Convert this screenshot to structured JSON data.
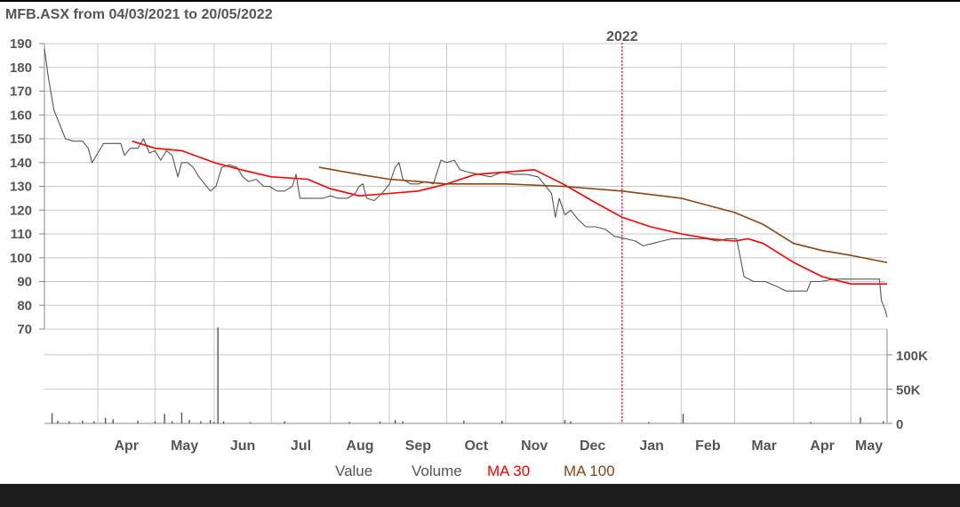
{
  "colors": {
    "value": "#555555",
    "volume": "#555555",
    "ma30": "#ff0000",
    "ma100": "#8b4513",
    "grid": "#c8c8c8",
    "year_marker": "#ff0000"
  },
  "chart_data": {
    "type": "line",
    "title": "MFB.ASX from 04/03/2021 to 20/05/2022",
    "x_range": [
      "2021-03-04",
      "2022-05-20"
    ],
    "ylim": [
      70,
      190
    ],
    "yticks": [
      70,
      80,
      90,
      100,
      110,
      120,
      130,
      140,
      150,
      160,
      170,
      180,
      190
    ],
    "volume_ticks": [
      {
        "value": 0,
        "label": "0"
      },
      {
        "value": 50000,
        "label": "50K"
      },
      {
        "value": 100000,
        "label": "100K"
      }
    ],
    "volume_max": 140000,
    "months": [
      {
        "label": "Apr",
        "date": "2021-04-01"
      },
      {
        "label": "May",
        "date": "2021-05-01"
      },
      {
        "label": "Jun",
        "date": "2021-06-01"
      },
      {
        "label": "Jul",
        "date": "2021-07-01"
      },
      {
        "label": "Aug",
        "date": "2021-08-01"
      },
      {
        "label": "Sep",
        "date": "2021-09-01"
      },
      {
        "label": "Oct",
        "date": "2021-10-01"
      },
      {
        "label": "Nov",
        "date": "2021-11-01"
      },
      {
        "label": "Dec",
        "date": "2021-12-01"
      },
      {
        "label": "Jan",
        "date": "2022-01-01"
      },
      {
        "label": "Feb",
        "date": "2022-02-01"
      },
      {
        "label": "Mar",
        "date": "2022-03-01"
      },
      {
        "label": "Apr",
        "date": "2022-04-01"
      },
      {
        "label": "May",
        "date": "2022-05-01"
      }
    ],
    "year_marker": {
      "label": "2022",
      "date": "2022-01-01"
    },
    "legend": [
      "Value",
      "Volume",
      "MA 30",
      "MA 100"
    ],
    "series": [
      {
        "name": "Value",
        "points": [
          [
            "2021-03-04",
            188
          ],
          [
            "2021-03-06",
            176
          ],
          [
            "2021-03-09",
            162
          ],
          [
            "2021-03-12",
            156
          ],
          [
            "2021-03-15",
            150
          ],
          [
            "2021-03-19",
            149
          ],
          [
            "2021-03-24",
            149
          ],
          [
            "2021-03-27",
            146
          ],
          [
            "2021-03-29",
            140
          ],
          [
            "2021-04-01",
            144
          ],
          [
            "2021-04-04",
            148
          ],
          [
            "2021-04-09",
            148
          ],
          [
            "2021-04-13",
            148
          ],
          [
            "2021-04-15",
            143
          ],
          [
            "2021-04-18",
            146
          ],
          [
            "2021-04-22",
            146
          ],
          [
            "2021-04-25",
            150
          ],
          [
            "2021-04-28",
            144
          ],
          [
            "2021-05-01",
            145
          ],
          [
            "2021-05-04",
            141
          ],
          [
            "2021-05-07",
            145
          ],
          [
            "2021-05-10",
            143
          ],
          [
            "2021-05-13",
            134
          ],
          [
            "2021-05-15",
            140
          ],
          [
            "2021-05-18",
            140
          ],
          [
            "2021-05-21",
            138
          ],
          [
            "2021-05-24",
            134
          ],
          [
            "2021-05-27",
            131
          ],
          [
            "2021-05-30",
            128
          ],
          [
            "2021-06-02",
            130
          ],
          [
            "2021-06-05",
            138
          ],
          [
            "2021-06-09",
            139
          ],
          [
            "2021-06-13",
            138
          ],
          [
            "2021-06-16",
            134
          ],
          [
            "2021-06-19",
            132
          ],
          [
            "2021-06-23",
            133
          ],
          [
            "2021-06-27",
            130
          ],
          [
            "2021-06-30",
            130
          ],
          [
            "2021-07-04",
            128
          ],
          [
            "2021-07-08",
            128
          ],
          [
            "2021-07-12",
            130
          ],
          [
            "2021-07-14",
            135
          ],
          [
            "2021-07-16",
            125
          ],
          [
            "2021-07-22",
            125
          ],
          [
            "2021-07-28",
            125
          ],
          [
            "2021-08-01",
            126
          ],
          [
            "2021-08-05",
            125
          ],
          [
            "2021-08-10",
            125
          ],
          [
            "2021-08-14",
            127
          ],
          [
            "2021-08-16",
            130
          ],
          [
            "2021-08-18",
            131
          ],
          [
            "2021-08-20",
            125
          ],
          [
            "2021-08-24",
            124
          ],
          [
            "2021-08-28",
            127
          ],
          [
            "2021-09-01",
            131
          ],
          [
            "2021-09-04",
            138
          ],
          [
            "2021-09-06",
            140
          ],
          [
            "2021-09-08",
            133
          ],
          [
            "2021-09-12",
            131
          ],
          [
            "2021-09-16",
            131
          ],
          [
            "2021-09-20",
            132
          ],
          [
            "2021-09-24",
            131
          ],
          [
            "2021-09-28",
            141
          ],
          [
            "2021-10-01",
            140
          ],
          [
            "2021-10-05",
            141
          ],
          [
            "2021-10-08",
            137
          ],
          [
            "2021-10-12",
            136
          ],
          [
            "2021-10-18",
            135
          ],
          [
            "2021-10-24",
            134
          ],
          [
            "2021-10-30",
            136
          ],
          [
            "2021-11-05",
            135
          ],
          [
            "2021-11-12",
            135
          ],
          [
            "2021-11-18",
            134
          ],
          [
            "2021-11-22",
            130
          ],
          [
            "2021-11-25",
            127
          ],
          [
            "2021-11-27",
            117
          ],
          [
            "2021-11-29",
            125
          ],
          [
            "2021-12-02",
            118
          ],
          [
            "2021-12-05",
            120
          ],
          [
            "2021-12-09",
            116
          ],
          [
            "2021-12-13",
            113
          ],
          [
            "2021-12-18",
            113
          ],
          [
            "2021-12-23",
            112
          ],
          [
            "2021-12-28",
            109
          ],
          [
            "2022-01-03",
            108
          ],
          [
            "2022-01-08",
            107
          ],
          [
            "2022-01-12",
            105
          ],
          [
            "2022-01-17",
            106
          ],
          [
            "2022-01-22",
            107
          ],
          [
            "2022-01-27",
            108
          ],
          [
            "2022-02-02",
            108
          ],
          [
            "2022-02-09",
            108
          ],
          [
            "2022-02-14",
            108
          ],
          [
            "2022-02-20",
            107
          ],
          [
            "2022-02-25",
            108
          ],
          [
            "2022-03-02",
            108
          ],
          [
            "2022-03-04",
            100
          ],
          [
            "2022-03-06",
            92
          ],
          [
            "2022-03-11",
            90
          ],
          [
            "2022-03-17",
            90
          ],
          [
            "2022-03-23",
            88
          ],
          [
            "2022-03-28",
            86
          ],
          [
            "2022-04-03",
            86
          ],
          [
            "2022-04-08",
            86
          ],
          [
            "2022-04-10",
            90
          ],
          [
            "2022-04-15",
            90
          ],
          [
            "2022-04-22",
            91
          ],
          [
            "2022-04-29",
            91
          ],
          [
            "2022-05-06",
            91
          ],
          [
            "2022-05-13",
            91
          ],
          [
            "2022-05-16",
            91
          ],
          [
            "2022-05-17",
            82
          ],
          [
            "2022-05-19",
            78
          ],
          [
            "2022-05-20",
            75
          ]
        ]
      },
      {
        "name": "MA 30",
        "points": [
          [
            "2021-04-19",
            149
          ],
          [
            "2021-05-01",
            146
          ],
          [
            "2021-05-15",
            145
          ],
          [
            "2021-06-01",
            140
          ],
          [
            "2021-06-15",
            137
          ],
          [
            "2021-07-01",
            134
          ],
          [
            "2021-07-20",
            133
          ],
          [
            "2021-08-01",
            129
          ],
          [
            "2021-08-16",
            126
          ],
          [
            "2021-09-01",
            127
          ],
          [
            "2021-09-16",
            128
          ],
          [
            "2021-10-01",
            131
          ],
          [
            "2021-10-16",
            135
          ],
          [
            "2021-11-01",
            136
          ],
          [
            "2021-11-16",
            137
          ],
          [
            "2021-12-01",
            131
          ],
          [
            "2021-12-16",
            124
          ],
          [
            "2022-01-01",
            117
          ],
          [
            "2022-01-16",
            113
          ],
          [
            "2022-02-01",
            110
          ],
          [
            "2022-02-16",
            108
          ],
          [
            "2022-03-01",
            107
          ],
          [
            "2022-03-08",
            108
          ],
          [
            "2022-03-16",
            106
          ],
          [
            "2022-04-01",
            98
          ],
          [
            "2022-04-16",
            92
          ],
          [
            "2022-05-01",
            89
          ],
          [
            "2022-05-20",
            89
          ]
        ]
      },
      {
        "name": "MA 100",
        "points": [
          [
            "2021-07-26",
            138
          ],
          [
            "2021-08-16",
            135
          ],
          [
            "2021-09-01",
            133
          ],
          [
            "2021-09-16",
            132
          ],
          [
            "2021-10-01",
            131
          ],
          [
            "2021-11-01",
            131
          ],
          [
            "2021-12-01",
            130
          ],
          [
            "2022-01-01",
            128
          ],
          [
            "2022-02-01",
            125
          ],
          [
            "2022-03-01",
            119
          ],
          [
            "2022-03-16",
            114
          ],
          [
            "2022-04-01",
            106
          ],
          [
            "2022-04-16",
            103
          ],
          [
            "2022-05-01",
            101
          ],
          [
            "2022-05-20",
            98
          ]
        ]
      }
    ],
    "volume": [
      [
        "2021-03-08",
        15000
      ],
      [
        "2021-03-11",
        4000
      ],
      [
        "2021-03-17",
        3000
      ],
      [
        "2021-03-24",
        4000
      ],
      [
        "2021-03-30",
        3000
      ],
      [
        "2021-04-05",
        8000
      ],
      [
        "2021-04-09",
        6000
      ],
      [
        "2021-04-22",
        4000
      ],
      [
        "2021-05-01",
        3000
      ],
      [
        "2021-05-06",
        14000
      ],
      [
        "2021-05-10",
        3000
      ],
      [
        "2021-05-15",
        16000
      ],
      [
        "2021-05-19",
        5000
      ],
      [
        "2021-05-25",
        3000
      ],
      [
        "2021-05-30",
        5000
      ],
      [
        "2021-06-01",
        2000
      ],
      [
        "2021-06-03",
        140000
      ],
      [
        "2021-06-06",
        3000
      ],
      [
        "2021-06-20",
        2000
      ],
      [
        "2021-07-08",
        3000
      ],
      [
        "2021-08-11",
        2000
      ],
      [
        "2021-08-27",
        3000
      ],
      [
        "2021-09-04",
        5000
      ],
      [
        "2021-09-08",
        3000
      ],
      [
        "2021-10-10",
        4000
      ],
      [
        "2021-10-30",
        4000
      ],
      [
        "2021-12-02",
        5000
      ],
      [
        "2021-12-05",
        3000
      ],
      [
        "2022-01-15",
        2000
      ],
      [
        "2022-02-02",
        14000
      ],
      [
        "2022-04-10",
        2000
      ],
      [
        "2022-05-06",
        9000
      ],
      [
        "2022-05-18",
        3000
      ]
    ]
  }
}
